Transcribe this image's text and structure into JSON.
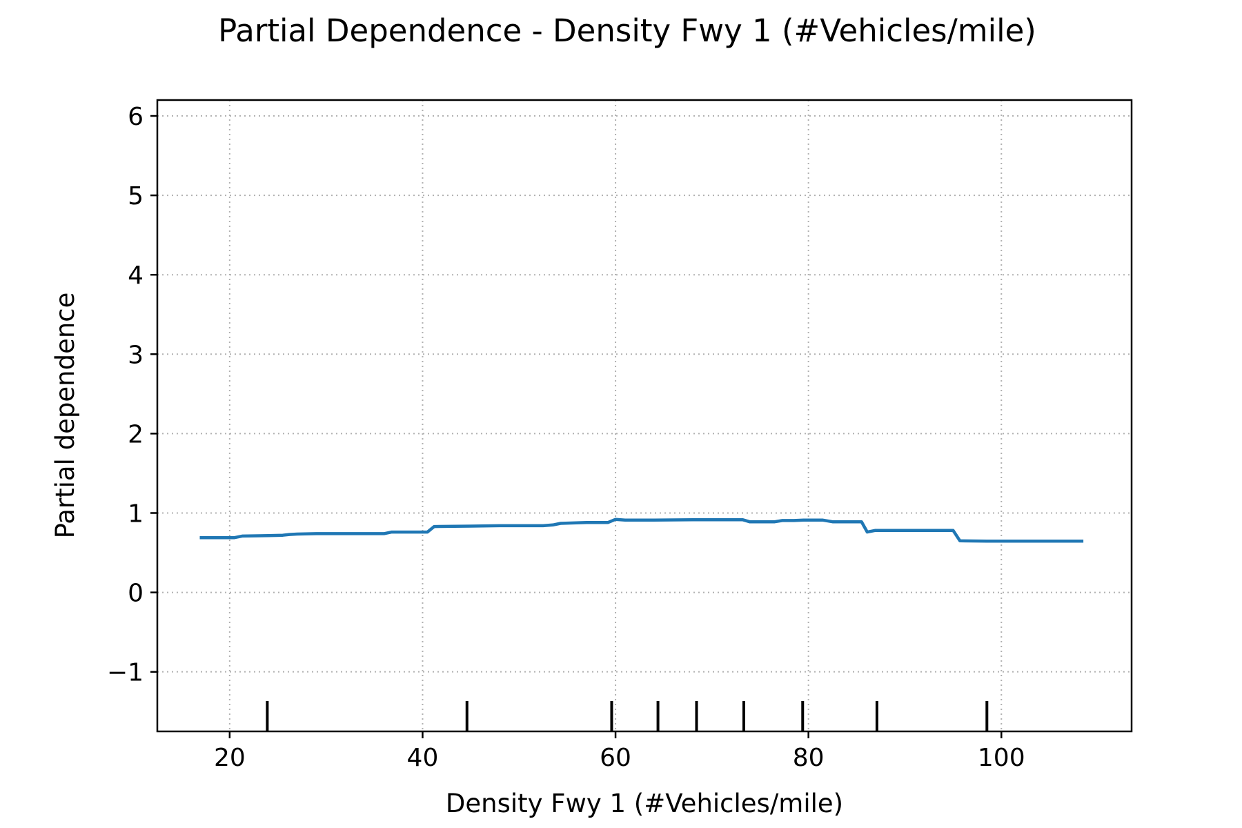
{
  "chart_data": {
    "type": "line",
    "title": "Partial Dependence - Density Fwy 1 (#Vehicles/mile)",
    "xlabel": "Density Fwy 1 (#Vehicles/mile)",
    "ylabel": "Partial dependence",
    "xlim": [
      12.5,
      113.5
    ],
    "ylim": [
      -1.75,
      6.2
    ],
    "xticks": [
      20,
      40,
      60,
      80,
      100
    ],
    "xtick_labels": [
      "20",
      "40",
      "60",
      "80",
      "100"
    ],
    "yticks": [
      -1,
      0,
      1,
      2,
      3,
      4,
      5,
      6
    ],
    "ytick_labels": [
      "−1",
      "0",
      "1",
      "2",
      "3",
      "4",
      "5",
      "6"
    ],
    "grid": true,
    "line_color": "#1f77b4",
    "rug_color": "#000000",
    "rug_x": [
      23.9,
      44.6,
      59.6,
      64.4,
      68.4,
      73.3,
      79.4,
      87.1,
      98.5
    ],
    "series": [
      {
        "x": [
          16.9,
          20.5,
          21.3,
          24.0,
          25.5,
          26.2,
          27.0,
          29.0,
          31.0,
          36.0,
          36.8,
          40.5,
          41.2,
          45.0,
          48.0,
          52.5,
          53.5,
          54.3,
          57.0,
          59.2,
          60.0,
          61.0,
          64.0,
          68.0,
          73.2,
          73.9,
          76.5,
          77.3,
          78.5,
          79.5,
          81.5,
          82.5,
          85.5,
          86.1,
          86.9,
          90.0,
          95.0,
          95.7,
          98.5,
          108.5
        ],
        "values": [
          0.69,
          0.69,
          0.71,
          0.715,
          0.72,
          0.73,
          0.735,
          0.74,
          0.74,
          0.74,
          0.76,
          0.76,
          0.83,
          0.835,
          0.84,
          0.84,
          0.85,
          0.87,
          0.88,
          0.88,
          0.92,
          0.91,
          0.91,
          0.915,
          0.915,
          0.89,
          0.89,
          0.905,
          0.905,
          0.91,
          0.91,
          0.89,
          0.89,
          0.76,
          0.78,
          0.78,
          0.78,
          0.65,
          0.645,
          0.645
        ]
      }
    ]
  }
}
